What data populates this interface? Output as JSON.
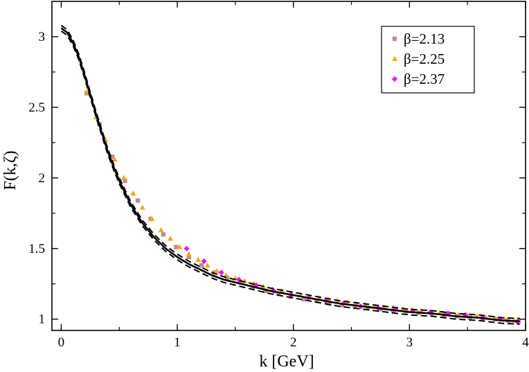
{
  "chart_data": {
    "type": "scatter",
    "title": "",
    "xlabel": "k [GeV]",
    "ylabel": "F(k,ζ)",
    "xlim": [
      -0.08,
      4.0
    ],
    "ylim": [
      0.92,
      3.25
    ],
    "xticks": [
      0,
      1,
      2,
      3,
      4
    ],
    "yticks": [
      1,
      1.5,
      2,
      2.5,
      3
    ],
    "xtick_labels": [
      "0",
      "1",
      "2",
      "3",
      "4"
    ],
    "ytick_labels": [
      "1",
      "1.5",
      "2",
      "2.5",
      "3"
    ],
    "grid": false,
    "legend_position": "top-right",
    "series": [
      {
        "name": "β=2.13",
        "marker": "square",
        "color": "#bc8f8f",
        "x": [
          0.22,
          0.33,
          0.44,
          0.55,
          0.66,
          0.77,
          0.88,
          0.99,
          1.1,
          1.21,
          1.32,
          1.43,
          1.54,
          1.65,
          1.76,
          1.87,
          1.98,
          2.09,
          2.2,
          2.31,
          2.42,
          2.53,
          2.64,
          2.75,
          2.86,
          2.97,
          3.08,
          3.19,
          3.3,
          3.41,
          3.52,
          3.63,
          3.74,
          3.85,
          3.94
        ],
        "y": [
          2.6,
          2.38,
          2.15,
          1.98,
          1.84,
          1.71,
          1.6,
          1.51,
          1.44,
          1.38,
          1.33,
          1.29,
          1.26,
          1.23,
          1.2,
          1.18,
          1.16,
          1.14,
          1.13,
          1.11,
          1.1,
          1.09,
          1.08,
          1.07,
          1.06,
          1.055,
          1.045,
          1.04,
          1.03,
          1.02,
          1.01,
          1.005,
          1.0,
          0.99,
          0.985
        ]
      },
      {
        "name": "β=2.25",
        "marker": "triangle",
        "color": "#ffa500",
        "x": [
          0.22,
          0.3,
          0.38,
          0.46,
          0.54,
          0.62,
          0.7,
          0.78,
          0.86,
          0.94,
          1.02,
          1.1,
          1.18,
          1.26,
          1.34,
          1.42,
          1.5,
          1.58,
          1.66,
          1.74,
          1.82,
          1.9,
          1.98,
          2.06,
          2.14,
          2.22,
          2.3,
          2.38,
          2.46,
          2.54,
          2.62,
          2.7,
          2.78,
          2.86,
          2.94,
          3.02,
          3.1,
          3.18,
          3.26,
          3.34,
          3.42,
          3.5,
          3.58,
          3.66,
          3.74,
          3.82,
          3.9
        ],
        "y": [
          2.61,
          2.43,
          2.27,
          2.13,
          2.0,
          1.89,
          1.79,
          1.71,
          1.63,
          1.57,
          1.51,
          1.46,
          1.42,
          1.38,
          1.34,
          1.31,
          1.29,
          1.27,
          1.25,
          1.23,
          1.21,
          1.2,
          1.18,
          1.17,
          1.16,
          1.15,
          1.14,
          1.13,
          1.12,
          1.11,
          1.1,
          1.09,
          1.085,
          1.08,
          1.07,
          1.065,
          1.06,
          1.05,
          1.045,
          1.04,
          1.03,
          1.025,
          1.02,
          1.01,
          1.005,
          1.0,
          0.99
        ]
      },
      {
        "name": "β=2.37",
        "marker": "diamond",
        "color": "#ff00ff",
        "x": [
          1.08,
          1.23,
          1.38,
          1.53,
          1.68,
          1.83,
          1.98,
          2.13,
          2.28,
          2.43,
          2.58,
          2.73,
          2.88,
          3.03,
          3.18,
          3.33,
          3.48,
          3.63,
          3.78,
          3.93
        ],
        "y": [
          1.5,
          1.41,
          1.33,
          1.28,
          1.24,
          1.2,
          1.17,
          1.15,
          1.13,
          1.11,
          1.09,
          1.08,
          1.07,
          1.06,
          1.05,
          1.04,
          1.03,
          1.01,
          1.0,
          0.98
        ]
      }
    ],
    "fit_curve": {
      "style": "solid-with-dashed-error-band",
      "color": "#000000",
      "x": [
        0,
        0.05,
        0.1,
        0.15,
        0.2,
        0.25,
        0.3,
        0.35,
        0.4,
        0.45,
        0.5,
        0.6,
        0.7,
        0.8,
        0.9,
        1.0,
        1.1,
        1.2,
        1.3,
        1.4,
        1.5,
        1.6,
        1.8,
        2.0,
        2.2,
        2.4,
        2.6,
        2.8,
        3.0,
        3.2,
        3.4,
        3.6,
        3.8,
        3.95
      ],
      "y": [
        3.06,
        3.03,
        2.96,
        2.86,
        2.73,
        2.59,
        2.45,
        2.32,
        2.19,
        2.08,
        1.98,
        1.81,
        1.68,
        1.58,
        1.5,
        1.44,
        1.39,
        1.35,
        1.31,
        1.28,
        1.26,
        1.24,
        1.2,
        1.17,
        1.14,
        1.11,
        1.09,
        1.07,
        1.05,
        1.04,
        1.02,
        1.01,
        0.99,
        0.985
      ],
      "band": 0.02
    }
  }
}
